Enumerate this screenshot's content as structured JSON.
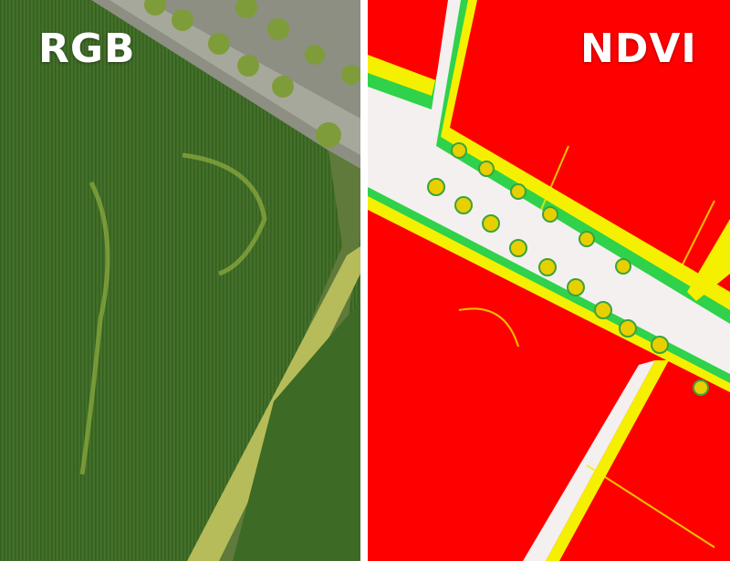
{
  "panels": {
    "left": {
      "label": "RGB"
    },
    "right": {
      "label": "NDVI"
    }
  },
  "colors": {
    "field_green": "#3f6b22",
    "ndvi_red": "#ff0000",
    "ndvi_yellow": "#f5f000",
    "road": "#f2eeee"
  }
}
